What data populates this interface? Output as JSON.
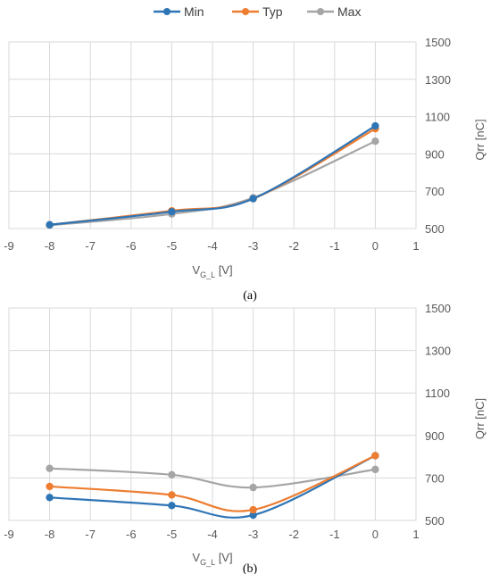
{
  "legend": [
    {
      "name": "Min",
      "color": "#2E75B6"
    },
    {
      "name": "Typ",
      "color": "#ED7D31"
    },
    {
      "name": "Max",
      "color": "#A5A5A5"
    }
  ],
  "captions": [
    "(a)",
    "(b)"
  ],
  "chart_data": [
    {
      "type": "line",
      "xlabel_main": "V",
      "xlabel_sub": "G_L",
      "xlabel_unit": " [V]",
      "ylabel": "Qrr [nC]",
      "xlim": [
        -9,
        1
      ],
      "ylim": [
        500,
        1500
      ],
      "xticks": [
        -9,
        -8,
        -7,
        -6,
        -5,
        -4,
        -3,
        -2,
        -1,
        0,
        1
      ],
      "yticks": [
        500,
        700,
        900,
        1100,
        1300,
        1500
      ],
      "x": [
        -8,
        -5,
        -3,
        0
      ],
      "grid": true,
      "series": [
        {
          "name": "Min",
          "values": [
            520,
            590,
            660,
            1050
          ]
        },
        {
          "name": "Typ",
          "values": [
            520,
            595,
            660,
            1035
          ]
        },
        {
          "name": "Max",
          "values": [
            518,
            578,
            665,
            968
          ]
        }
      ]
    },
    {
      "type": "line",
      "xlabel_main": "V",
      "xlabel_sub": "G_L",
      "xlabel_unit": " [V]",
      "ylabel": "Qrr [nC]",
      "xlim": [
        -9,
        1
      ],
      "ylim": [
        500,
        1500
      ],
      "xticks": [
        -9,
        -8,
        -7,
        -6,
        -5,
        -4,
        -3,
        -2,
        -1,
        0,
        1
      ],
      "yticks": [
        500,
        700,
        900,
        1100,
        1300,
        1500
      ],
      "x": [
        -8,
        -5,
        -3,
        0
      ],
      "grid": true,
      "series": [
        {
          "name": "Min",
          "values": [
            608,
            570,
            525,
            805
          ]
        },
        {
          "name": "Typ",
          "values": [
            660,
            620,
            550,
            805
          ]
        },
        {
          "name": "Max",
          "values": [
            745,
            715,
            655,
            740
          ]
        }
      ]
    }
  ]
}
